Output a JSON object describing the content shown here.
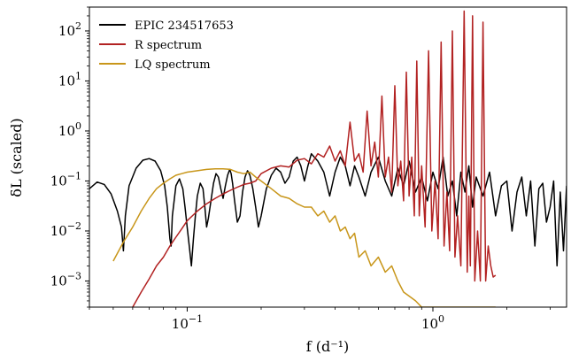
{
  "chart_data": {
    "type": "line",
    "xlabel": "f (d⁻¹)",
    "ylabel": "δL (scaled)",
    "xscale": "log",
    "yscale": "log",
    "xlim": [
      0.04,
      3.5
    ],
    "ylim": [
      0.0003,
      300
    ],
    "x_ticks": [
      {
        "value": 0.1,
        "mantissa": "10",
        "exp": "−1"
      },
      {
        "value": 1,
        "mantissa": "10",
        "exp": "0"
      }
    ],
    "y_ticks": [
      {
        "value": 0.001,
        "mantissa": "10",
        "exp": "−3"
      },
      {
        "value": 0.01,
        "mantissa": "10",
        "exp": "−2"
      },
      {
        "value": 0.1,
        "mantissa": "10",
        "exp": "−1"
      },
      {
        "value": 1,
        "mantissa": "10",
        "exp": "0"
      },
      {
        "value": 10,
        "mantissa": "10",
        "exp": "1"
      },
      {
        "value": 100,
        "mantissa": "10",
        "exp": "2"
      }
    ],
    "legend_position": "top-left",
    "grid": false,
    "series": [
      {
        "name": "EPIC 234517653",
        "color": "#000000",
        "x": [
          0.04,
          0.043,
          0.046,
          0.049,
          0.052,
          0.054,
          0.055,
          0.056,
          0.058,
          0.062,
          0.066,
          0.07,
          0.074,
          0.078,
          0.081,
          0.083,
          0.085,
          0.086,
          0.087,
          0.09,
          0.093,
          0.096,
          0.098,
          0.1,
          0.102,
          0.104,
          0.106,
          0.108,
          0.11,
          0.113,
          0.116,
          0.118,
          0.12,
          0.122,
          0.125,
          0.128,
          0.131,
          0.134,
          0.137,
          0.14,
          0.143,
          0.146,
          0.149,
          0.151,
          0.153,
          0.156,
          0.16,
          0.164,
          0.168,
          0.172,
          0.176,
          0.18,
          0.185,
          0.19,
          0.195,
          0.2,
          0.21,
          0.22,
          0.23,
          0.24,
          0.25,
          0.26,
          0.27,
          0.28,
          0.29,
          0.3,
          0.31,
          0.32,
          0.34,
          0.36,
          0.38,
          0.4,
          0.42,
          0.44,
          0.46,
          0.48,
          0.5,
          0.53,
          0.56,
          0.6,
          0.64,
          0.68,
          0.72,
          0.76,
          0.8,
          0.85,
          0.9,
          0.95,
          1.0,
          1.05,
          1.1,
          1.15,
          1.2,
          1.25,
          1.3,
          1.35,
          1.4,
          1.45,
          1.5,
          1.6,
          1.7,
          1.8,
          1.9,
          2.0,
          2.1,
          2.2,
          2.3,
          2.4,
          2.5,
          2.6,
          2.7,
          2.8,
          2.9,
          3.0,
          3.1,
          3.2,
          3.3,
          3.4,
          3.5
        ],
        "y": [
          0.07,
          0.095,
          0.085,
          0.055,
          0.025,
          0.012,
          0.004,
          0.02,
          0.08,
          0.18,
          0.26,
          0.28,
          0.25,
          0.16,
          0.08,
          0.03,
          0.007,
          0.005,
          0.02,
          0.08,
          0.11,
          0.07,
          0.03,
          0.012,
          0.005,
          0.002,
          0.007,
          0.02,
          0.05,
          0.09,
          0.07,
          0.03,
          0.012,
          0.018,
          0.04,
          0.09,
          0.14,
          0.12,
          0.07,
          0.045,
          0.08,
          0.13,
          0.17,
          0.14,
          0.09,
          0.04,
          0.015,
          0.02,
          0.06,
          0.12,
          0.16,
          0.13,
          0.07,
          0.03,
          0.012,
          0.02,
          0.07,
          0.13,
          0.18,
          0.15,
          0.09,
          0.12,
          0.25,
          0.3,
          0.2,
          0.1,
          0.2,
          0.35,
          0.25,
          0.15,
          0.05,
          0.15,
          0.3,
          0.2,
          0.08,
          0.2,
          0.12,
          0.05,
          0.15,
          0.3,
          0.1,
          0.05,
          0.18,
          0.08,
          0.25,
          0.06,
          0.12,
          0.04,
          0.15,
          0.07,
          0.3,
          0.05,
          0.1,
          0.02,
          0.15,
          0.06,
          0.2,
          0.03,
          0.12,
          0.05,
          0.15,
          0.02,
          0.08,
          0.1,
          0.01,
          0.06,
          0.12,
          0.02,
          0.1,
          0.005,
          0.07,
          0.09,
          0.015,
          0.03,
          0.1,
          0.002,
          0.06,
          0.004,
          0.08
        ]
      },
      {
        "name": "R spectrum",
        "color": "#b22222",
        "x": [
          0.06,
          0.065,
          0.07,
          0.075,
          0.08,
          0.085,
          0.09,
          0.095,
          0.1,
          0.11,
          0.12,
          0.13,
          0.14,
          0.15,
          0.16,
          0.17,
          0.18,
          0.19,
          0.2,
          0.22,
          0.24,
          0.26,
          0.28,
          0.3,
          0.32,
          0.34,
          0.36,
          0.38,
          0.4,
          0.42,
          0.44,
          0.46,
          0.48,
          0.5,
          0.52,
          0.54,
          0.56,
          0.58,
          0.6,
          0.62,
          0.64,
          0.66,
          0.68,
          0.7,
          0.72,
          0.74,
          0.76,
          0.78,
          0.8,
          0.82,
          0.84,
          0.86,
          0.88,
          0.9,
          0.93,
          0.96,
          0.99,
          1.02,
          1.05,
          1.08,
          1.11,
          1.14,
          1.17,
          1.2,
          1.23,
          1.26,
          1.3,
          1.34,
          1.38,
          1.4,
          1.42,
          1.45,
          1.48,
          1.52,
          1.56,
          1.6,
          1.64,
          1.68,
          1.72,
          1.76,
          1.8
        ],
        "y": [
          0.0003,
          0.0006,
          0.0011,
          0.002,
          0.003,
          0.005,
          0.0075,
          0.011,
          0.016,
          0.025,
          0.035,
          0.045,
          0.055,
          0.065,
          0.075,
          0.085,
          0.09,
          0.1,
          0.14,
          0.18,
          0.2,
          0.19,
          0.26,
          0.28,
          0.22,
          0.35,
          0.3,
          0.5,
          0.25,
          0.4,
          0.2,
          1.5,
          0.25,
          0.35,
          0.15,
          2.5,
          0.2,
          0.6,
          0.12,
          5,
          0.12,
          0.3,
          0.06,
          8,
          0.08,
          0.25,
          0.04,
          15,
          0.05,
          0.3,
          0.02,
          25,
          0.02,
          0.2,
          0.012,
          40,
          0.01,
          0.1,
          0.007,
          60,
          0.005,
          0.06,
          0.004,
          100,
          0.003,
          0.02,
          0.002,
          250,
          0.0015,
          0.05,
          0.002,
          200,
          0.001,
          0.01,
          0.001,
          150,
          0.001,
          0.005,
          0.002,
          0.0012,
          0.0013
        ]
      },
      {
        "name": "LQ spectrum",
        "color": "#c8961a",
        "x": [
          0.05,
          0.055,
          0.06,
          0.065,
          0.07,
          0.075,
          0.08,
          0.085,
          0.09,
          0.095,
          0.1,
          0.11,
          0.12,
          0.13,
          0.14,
          0.15,
          0.16,
          0.17,
          0.18,
          0.19,
          0.2,
          0.22,
          0.24,
          0.26,
          0.28,
          0.3,
          0.32,
          0.34,
          0.36,
          0.38,
          0.4,
          0.42,
          0.44,
          0.46,
          0.48,
          0.5,
          0.53,
          0.56,
          0.6,
          0.64,
          0.68,
          0.72,
          0.76,
          0.8,
          0.85,
          0.9,
          0.95,
          1.0,
          1.05,
          1.1,
          1.15,
          1.2,
          1.25,
          1.3,
          1.35,
          1.4,
          1.45,
          1.5,
          1.55,
          1.6,
          1.65,
          1.7,
          1.75,
          1.8
        ],
        "y": [
          0.0025,
          0.006,
          0.012,
          0.025,
          0.045,
          0.07,
          0.09,
          0.11,
          0.13,
          0.14,
          0.15,
          0.16,
          0.17,
          0.175,
          0.175,
          0.17,
          0.15,
          0.14,
          0.15,
          0.12,
          0.1,
          0.07,
          0.05,
          0.045,
          0.035,
          0.03,
          0.03,
          0.02,
          0.025,
          0.015,
          0.02,
          0.01,
          0.012,
          0.007,
          0.009,
          0.003,
          0.004,
          0.002,
          0.003,
          0.0015,
          0.002,
          0.001,
          0.0006,
          0.0005,
          0.0004,
          0.0003,
          0.0003,
          0.0003,
          0.0003,
          0.0003,
          0.0003,
          0.0003,
          0.0003,
          0.0003,
          0.0003,
          0.0003,
          0.0003,
          0.0003,
          0.0003,
          0.0003,
          0.0003,
          0.0003,
          0.0003,
          0.0003
        ]
      }
    ]
  }
}
